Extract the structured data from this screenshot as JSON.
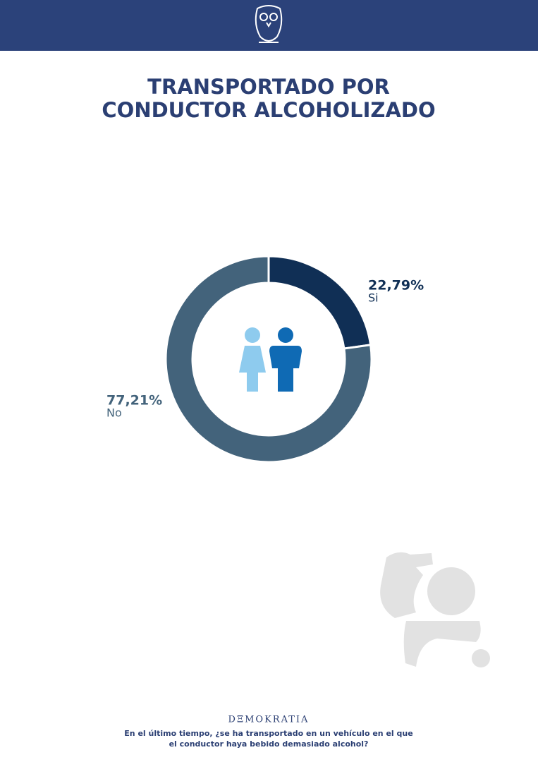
{
  "chart_data": {
    "type": "pie",
    "donut": true,
    "title": [
      "TRANSPORTADO POR",
      "CONDUCTOR ALCOHOLIZADO"
    ],
    "categories": [
      "Si",
      "No"
    ],
    "values": [
      22.79,
      77.21
    ],
    "value_labels": [
      "22,79%",
      "77,21%"
    ],
    "colors": [
      "#102f55",
      "#43637b"
    ]
  },
  "footer": {
    "brand": "DΞMOKRATIA",
    "question": [
      "En el último tiempo, ¿se ha transportado en un vehículo en el que",
      "el conductor haya bebido demasiado alcohol?"
    ]
  }
}
